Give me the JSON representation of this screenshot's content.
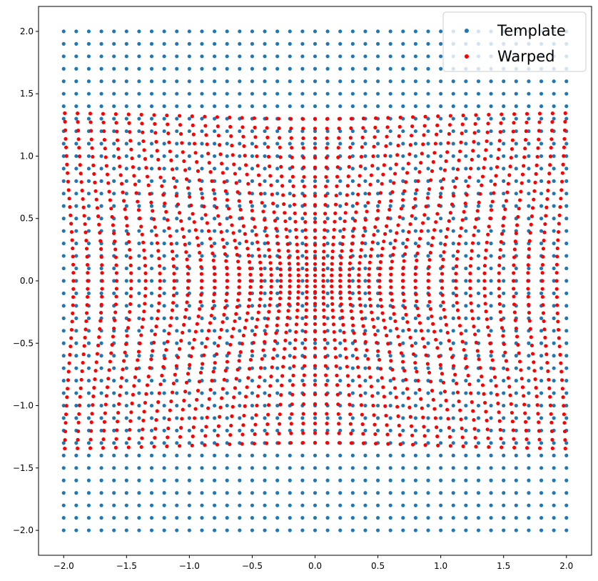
{
  "chart_data": {
    "type": "scatter",
    "title": "",
    "xlabel": "",
    "ylabel": "",
    "xlim": [
      -2.2,
      2.2
    ],
    "ylim": [
      -2.2,
      2.2
    ],
    "xticks": [
      -2.0,
      -1.5,
      -1.0,
      -0.5,
      0.0,
      0.5,
      1.0,
      1.5,
      2.0
    ],
    "yticks": [
      -2.0,
      -1.5,
      -1.0,
      -0.5,
      0.0,
      0.5,
      1.0,
      1.5,
      2.0
    ],
    "xtick_labels": [
      "−2.0",
      "−1.5",
      "−1.0",
      "−0.5",
      "0.0",
      "0.5",
      "1.0",
      "1.5",
      "2.0"
    ],
    "ytick_labels": [
      "−2.0",
      "−1.5",
      "−1.0",
      "−0.5",
      "0.0",
      "0.5",
      "1.0",
      "1.5",
      "2.0"
    ],
    "grid": false,
    "legend_placement": "top-right",
    "series": [
      {
        "name": "Template",
        "color": "#1f77b4",
        "grid_points": 41,
        "x_range": [
          -2.0,
          2.0
        ],
        "y_range": [
          -2.0,
          2.0
        ]
      },
      {
        "name": "Warped",
        "color": "#ff0000",
        "grid_points": 41,
        "x_range": [
          -2.0,
          2.0
        ],
        "y_range": [
          -1.35,
          1.35
        ],
        "warp": "radial compression toward origin"
      }
    ]
  }
}
